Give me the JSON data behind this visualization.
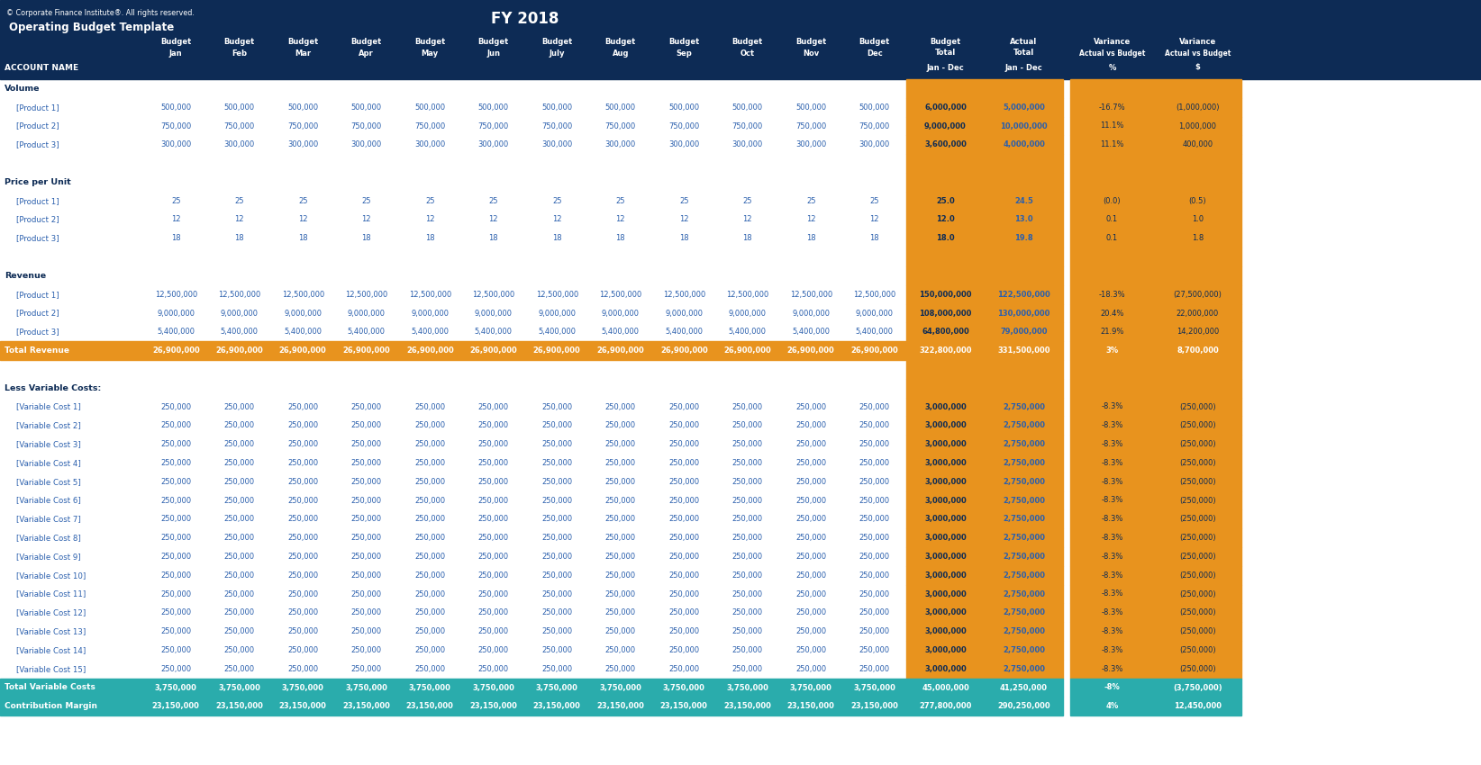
{
  "title": "FY 2018",
  "subtitle": "Operating Budget Template",
  "copyright": "© Corporate Finance Institute®. All rights reserved.",
  "bg_dark": "#0d2b55",
  "bg_orange": "#e8931e",
  "bg_teal": "#2aacac",
  "bg_white": "#ffffff",
  "text_white": "#ffffff",
  "text_blue": "#2a5fad",
  "text_dark": "#0d2b55",
  "text_orange": "#2a5fad",
  "months": [
    "Jan",
    "Feb",
    "Mar",
    "Apr",
    "May",
    "Jun",
    "July",
    "Aug",
    "Sep",
    "Oct",
    "Nov",
    "Dec"
  ],
  "rows": [
    {
      "label": "Volume",
      "type": "section"
    },
    {
      "label": "[Product 1]",
      "type": "data",
      "values": [
        500000,
        500000,
        500000,
        500000,
        500000,
        500000,
        500000,
        500000,
        500000,
        500000,
        500000,
        500000
      ],
      "budget_total": "6,000,000",
      "actual_total": "5,000,000",
      "var_pct": "-16.7%",
      "var_usd": "(1,000,000)"
    },
    {
      "label": "[Product 2]",
      "type": "data",
      "values": [
        750000,
        750000,
        750000,
        750000,
        750000,
        750000,
        750000,
        750000,
        750000,
        750000,
        750000,
        750000
      ],
      "budget_total": "9,000,000",
      "actual_total": "10,000,000",
      "var_pct": "11.1%",
      "var_usd": "1,000,000"
    },
    {
      "label": "[Product 3]",
      "type": "data",
      "values": [
        300000,
        300000,
        300000,
        300000,
        300000,
        300000,
        300000,
        300000,
        300000,
        300000,
        300000,
        300000
      ],
      "budget_total": "3,600,000",
      "actual_total": "4,000,000",
      "var_pct": "11.1%",
      "var_usd": "400,000"
    },
    {
      "label": "",
      "type": "blank"
    },
    {
      "label": "Price per Unit",
      "type": "section"
    },
    {
      "label": "[Product 1]",
      "type": "data",
      "values": [
        25.0,
        25.0,
        25.0,
        25.0,
        25.0,
        25.0,
        25.0,
        25.0,
        25.0,
        25.0,
        25.0,
        25.0
      ],
      "budget_total": "25.0",
      "actual_total": "24.5",
      "var_pct": "(0.0)",
      "var_usd": "(0.5)"
    },
    {
      "label": "[Product 2]",
      "type": "data",
      "values": [
        12.0,
        12.0,
        12.0,
        12.0,
        12.0,
        12.0,
        12.0,
        12.0,
        12.0,
        12.0,
        12.0,
        12.0
      ],
      "budget_total": "12.0",
      "actual_total": "13.0",
      "var_pct": "0.1",
      "var_usd": "1.0"
    },
    {
      "label": "[Product 3]",
      "type": "data",
      "values": [
        18.0,
        18.0,
        18.0,
        18.0,
        18.0,
        18.0,
        18.0,
        18.0,
        18.0,
        18.0,
        18.0,
        18.0
      ],
      "budget_total": "18.0",
      "actual_total": "19.8",
      "var_pct": "0.1",
      "var_usd": "1.8"
    },
    {
      "label": "",
      "type": "blank"
    },
    {
      "label": "Revenue",
      "type": "section"
    },
    {
      "label": "[Product 1]",
      "type": "data",
      "values": [
        12500000,
        12500000,
        12500000,
        12500000,
        12500000,
        12500000,
        12500000,
        12500000,
        12500000,
        12500000,
        12500000,
        12500000
      ],
      "budget_total": "150,000,000",
      "actual_total": "122,500,000",
      "var_pct": "-18.3%",
      "var_usd": "(27,500,000)"
    },
    {
      "label": "[Product 2]",
      "type": "data",
      "values": [
        9000000,
        9000000,
        9000000,
        9000000,
        9000000,
        9000000,
        9000000,
        9000000,
        9000000,
        9000000,
        9000000,
        9000000
      ],
      "budget_total": "108,000,000",
      "actual_total": "130,000,000",
      "var_pct": "20.4%",
      "var_usd": "22,000,000"
    },
    {
      "label": "[Product 3]",
      "type": "data",
      "values": [
        5400000,
        5400000,
        5400000,
        5400000,
        5400000,
        5400000,
        5400000,
        5400000,
        5400000,
        5400000,
        5400000,
        5400000
      ],
      "budget_total": "64,800,000",
      "actual_total": "79,000,000",
      "var_pct": "21.9%",
      "var_usd": "14,200,000"
    },
    {
      "label": "Total Revenue",
      "type": "total_orange",
      "values": [
        26900000,
        26900000,
        26900000,
        26900000,
        26900000,
        26900000,
        26900000,
        26900000,
        26900000,
        26900000,
        26900000,
        26900000
      ],
      "budget_total": "322,800,000",
      "actual_total": "331,500,000",
      "var_pct": "3%",
      "var_usd": "8,700,000"
    },
    {
      "label": "",
      "type": "blank"
    },
    {
      "label": "Less Variable Costs:",
      "type": "section"
    },
    {
      "label": "[Variable Cost 1]",
      "type": "data",
      "values": [
        250000,
        250000,
        250000,
        250000,
        250000,
        250000,
        250000,
        250000,
        250000,
        250000,
        250000,
        250000
      ],
      "budget_total": "3,000,000",
      "actual_total": "2,750,000",
      "var_pct": "-8.3%",
      "var_usd": "(250,000)"
    },
    {
      "label": "[Variable Cost 2]",
      "type": "data",
      "values": [
        250000,
        250000,
        250000,
        250000,
        250000,
        250000,
        250000,
        250000,
        250000,
        250000,
        250000,
        250000
      ],
      "budget_total": "3,000,000",
      "actual_total": "2,750,000",
      "var_pct": "-8.3%",
      "var_usd": "(250,000)"
    },
    {
      "label": "[Variable Cost 3]",
      "type": "data",
      "values": [
        250000,
        250000,
        250000,
        250000,
        250000,
        250000,
        250000,
        250000,
        250000,
        250000,
        250000,
        250000
      ],
      "budget_total": "3,000,000",
      "actual_total": "2,750,000",
      "var_pct": "-8.3%",
      "var_usd": "(250,000)"
    },
    {
      "label": "[Variable Cost 4]",
      "type": "data",
      "values": [
        250000,
        250000,
        250000,
        250000,
        250000,
        250000,
        250000,
        250000,
        250000,
        250000,
        250000,
        250000
      ],
      "budget_total": "3,000,000",
      "actual_total": "2,750,000",
      "var_pct": "-8.3%",
      "var_usd": "(250,000)"
    },
    {
      "label": "[Variable Cost 5]",
      "type": "data",
      "values": [
        250000,
        250000,
        250000,
        250000,
        250000,
        250000,
        250000,
        250000,
        250000,
        250000,
        250000,
        250000
      ],
      "budget_total": "3,000,000",
      "actual_total": "2,750,000",
      "var_pct": "-8.3%",
      "var_usd": "(250,000)"
    },
    {
      "label": "[Variable Cost 6]",
      "type": "data",
      "values": [
        250000,
        250000,
        250000,
        250000,
        250000,
        250000,
        250000,
        250000,
        250000,
        250000,
        250000,
        250000
      ],
      "budget_total": "3,000,000",
      "actual_total": "2,750,000",
      "var_pct": "-8.3%",
      "var_usd": "(250,000)"
    },
    {
      "label": "[Variable Cost 7]",
      "type": "data",
      "values": [
        250000,
        250000,
        250000,
        250000,
        250000,
        250000,
        250000,
        250000,
        250000,
        250000,
        250000,
        250000
      ],
      "budget_total": "3,000,000",
      "actual_total": "2,750,000",
      "var_pct": "-8.3%",
      "var_usd": "(250,000)"
    },
    {
      "label": "[Variable Cost 8]",
      "type": "data",
      "values": [
        250000,
        250000,
        250000,
        250000,
        250000,
        250000,
        250000,
        250000,
        250000,
        250000,
        250000,
        250000
      ],
      "budget_total": "3,000,000",
      "actual_total": "2,750,000",
      "var_pct": "-8.3%",
      "var_usd": "(250,000)"
    },
    {
      "label": "[Variable Cost 9]",
      "type": "data",
      "values": [
        250000,
        250000,
        250000,
        250000,
        250000,
        250000,
        250000,
        250000,
        250000,
        250000,
        250000,
        250000
      ],
      "budget_total": "3,000,000",
      "actual_total": "2,750,000",
      "var_pct": "-8.3%",
      "var_usd": "(250,000)"
    },
    {
      "label": "[Variable Cost 10]",
      "type": "data",
      "values": [
        250000,
        250000,
        250000,
        250000,
        250000,
        250000,
        250000,
        250000,
        250000,
        250000,
        250000,
        250000
      ],
      "budget_total": "3,000,000",
      "actual_total": "2,750,000",
      "var_pct": "-8.3%",
      "var_usd": "(250,000)"
    },
    {
      "label": "[Variable Cost 11]",
      "type": "data",
      "values": [
        250000,
        250000,
        250000,
        250000,
        250000,
        250000,
        250000,
        250000,
        250000,
        250000,
        250000,
        250000
      ],
      "budget_total": "3,000,000",
      "actual_total": "2,750,000",
      "var_pct": "-8.3%",
      "var_usd": "(250,000)"
    },
    {
      "label": "[Variable Cost 12]",
      "type": "data",
      "values": [
        250000,
        250000,
        250000,
        250000,
        250000,
        250000,
        250000,
        250000,
        250000,
        250000,
        250000,
        250000
      ],
      "budget_total": "3,000,000",
      "actual_total": "2,750,000",
      "var_pct": "-8.3%",
      "var_usd": "(250,000)"
    },
    {
      "label": "[Variable Cost 13]",
      "type": "data",
      "values": [
        250000,
        250000,
        250000,
        250000,
        250000,
        250000,
        250000,
        250000,
        250000,
        250000,
        250000,
        250000
      ],
      "budget_total": "3,000,000",
      "actual_total": "2,750,000",
      "var_pct": "-8.3%",
      "var_usd": "(250,000)"
    },
    {
      "label": "[Variable Cost 14]",
      "type": "data",
      "values": [
        250000,
        250000,
        250000,
        250000,
        250000,
        250000,
        250000,
        250000,
        250000,
        250000,
        250000,
        250000
      ],
      "budget_total": "3,000,000",
      "actual_total": "2,750,000",
      "var_pct": "-8.3%",
      "var_usd": "(250,000)"
    },
    {
      "label": "[Variable Cost 15]",
      "type": "data",
      "values": [
        250000,
        250000,
        250000,
        250000,
        250000,
        250000,
        250000,
        250000,
        250000,
        250000,
        250000,
        250000
      ],
      "budget_total": "3,000,000",
      "actual_total": "2,750,000",
      "var_pct": "-8.3%",
      "var_usd": "(250,000)"
    },
    {
      "label": "Total Variable Costs",
      "type": "total_teal",
      "values": [
        3750000,
        3750000,
        3750000,
        3750000,
        3750000,
        3750000,
        3750000,
        3750000,
        3750000,
        3750000,
        3750000,
        3750000
      ],
      "budget_total": "45,000,000",
      "actual_total": "41,250,000",
      "var_pct": "-8%",
      "var_usd": "(3,750,000)"
    },
    {
      "label": "Contribution Margin",
      "type": "total_teal",
      "values": [
        23150000,
        23150000,
        23150000,
        23150000,
        23150000,
        23150000,
        23150000,
        23150000,
        23150000,
        23150000,
        23150000,
        23150000
      ],
      "budget_total": "277,800,000",
      "actual_total": "290,250,000",
      "var_pct": "4%",
      "var_usd": "12,450,000"
    }
  ]
}
